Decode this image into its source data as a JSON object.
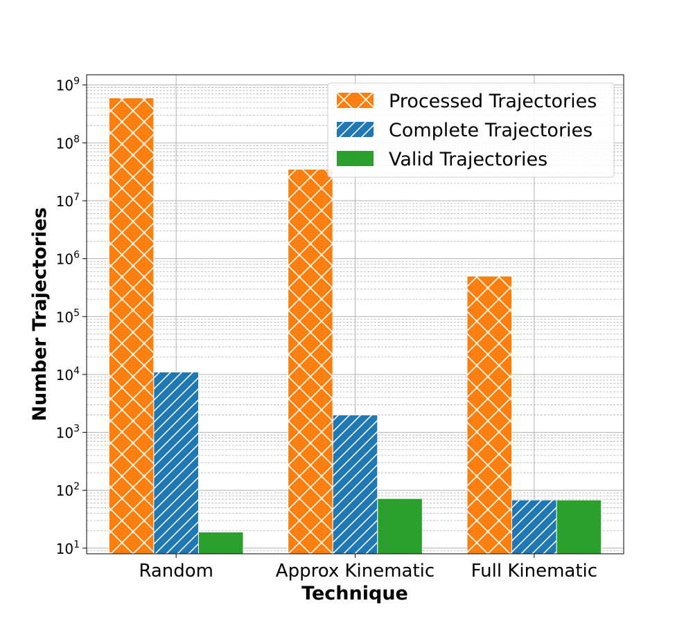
{
  "chart_data": {
    "type": "bar",
    "title": "",
    "xlabel": "Technique",
    "ylabel": "Number Trajectories",
    "yscale": "log",
    "ylim": [
      8,
      1500000000
    ],
    "y_tick_labels": [
      {
        "base": "10",
        "exp": "1",
        "value": 10
      },
      {
        "base": "10",
        "exp": "2",
        "value": 100
      },
      {
        "base": "10",
        "exp": "3",
        "value": 1000
      },
      {
        "base": "10",
        "exp": "4",
        "value": 10000
      },
      {
        "base": "10",
        "exp": "5",
        "value": 100000
      },
      {
        "base": "10",
        "exp": "6",
        "value": 1000000
      },
      {
        "base": "10",
        "exp": "7",
        "value": 10000000
      },
      {
        "base": "10",
        "exp": "8",
        "value": 100000000
      },
      {
        "base": "10",
        "exp": "9",
        "value": 1000000000
      }
    ],
    "grid": true,
    "legend_position": "top-right",
    "categories": [
      "Random",
      "Approx Kinematic",
      "Full Kinematic"
    ],
    "series": [
      {
        "name": "Processed Trajectories",
        "color": "#ff7f0e",
        "hatch": "cross",
        "values": [
          600000000,
          35000000,
          500000
        ]
      },
      {
        "name": "Complete Trajectories",
        "color": "#1f77b4",
        "hatch": "diagonal",
        "values": [
          11000,
          2000,
          68
        ]
      },
      {
        "name": "Valid Trajectories",
        "color": "#2ca02c",
        "hatch": "none",
        "values": [
          19,
          72,
          68
        ]
      }
    ]
  }
}
